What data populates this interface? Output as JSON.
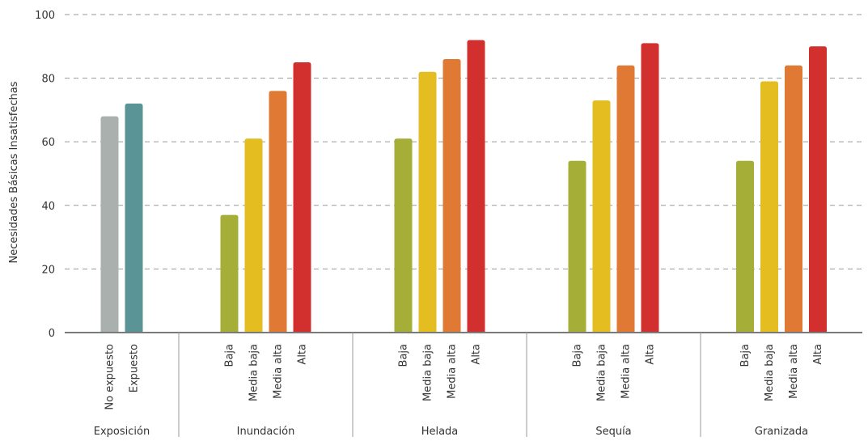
{
  "chart_data": {
    "type": "bar",
    "title": "",
    "xlabel": "",
    "ylabel": "Necesidades Básicas Insatisfechas",
    "ylim": [
      0,
      100
    ],
    "yticks": [
      0,
      20,
      40,
      60,
      80,
      100
    ],
    "grid": true,
    "legend": "none",
    "groups": [
      {
        "name": "Exposición",
        "bars": [
          {
            "label": "No expuesto",
            "value": 68,
            "color": "#a9b0ad"
          },
          {
            "label": "Expuesto",
            "value": 72,
            "color": "#5a9496"
          }
        ]
      },
      {
        "name": "Inundación",
        "bars": [
          {
            "label": "Baja",
            "value": 37,
            "color": "#a5af37"
          },
          {
            "label": "Media baja",
            "value": 61,
            "color": "#e4be21"
          },
          {
            "label": "Media alta",
            "value": 76,
            "color": "#df7934"
          },
          {
            "label": "Alta",
            "value": 85,
            "color": "#d1302f"
          }
        ]
      },
      {
        "name": "Helada",
        "bars": [
          {
            "label": "Baja",
            "value": 61,
            "color": "#a5af37"
          },
          {
            "label": "Media baja",
            "value": 82,
            "color": "#e4be21"
          },
          {
            "label": "Media alta",
            "value": 86,
            "color": "#df7934"
          },
          {
            "label": "Alta",
            "value": 92,
            "color": "#d1302f"
          }
        ]
      },
      {
        "name": "Sequía",
        "bars": [
          {
            "label": "Baja",
            "value": 54,
            "color": "#a5af37"
          },
          {
            "label": "Media baja",
            "value": 73,
            "color": "#e4be21"
          },
          {
            "label": "Media alta",
            "value": 84,
            "color": "#df7934"
          },
          {
            "label": "Alta",
            "value": 91,
            "color": "#d1302f"
          }
        ]
      },
      {
        "name": "Granizada",
        "bars": [
          {
            "label": "Baja",
            "value": 54,
            "color": "#a5af37"
          },
          {
            "label": "Media baja",
            "value": 79,
            "color": "#e4be21"
          },
          {
            "label": "Media alta",
            "value": 84,
            "color": "#df7934"
          },
          {
            "label": "Alta",
            "value": 90,
            "color": "#d1302f"
          }
        ]
      }
    ]
  },
  "colors": {
    "grid": "#999999",
    "axis": "#7a7a7a",
    "text": "#333333"
  }
}
